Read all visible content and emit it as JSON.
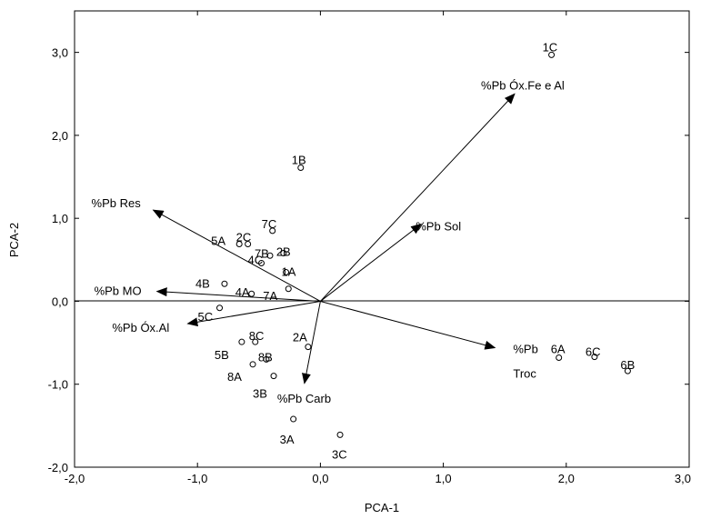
{
  "chart_data": {
    "type": "scatter",
    "xlabel": "PCA-1",
    "ylabel": "PCA-2",
    "xlim": [
      -2.0,
      3.0
    ],
    "ylim": [
      -2.0,
      3.5
    ],
    "xticks": [
      "-2,0",
      "-1,0",
      "0,0",
      "1,0",
      "2,0",
      "3,0"
    ],
    "yticks": [
      "-2,0",
      "-1,0",
      "0,0",
      "1,0",
      "2,0",
      "3,0"
    ],
    "xtick_values": [
      -2,
      -1,
      0,
      1,
      2,
      3
    ],
    "ytick_values": [
      -2,
      -1,
      0,
      1,
      2,
      3
    ],
    "zero_line": "horizontal at y = 0",
    "points": [
      {
        "label": "1C",
        "x": 1.88,
        "y": 2.97
      },
      {
        "label": "1B",
        "x": -0.16,
        "y": 1.61
      },
      {
        "label": "5A",
        "x": -0.66,
        "y": 0.69
      },
      {
        "label": "2C",
        "x": -0.59,
        "y": 0.69
      },
      {
        "label": "7C",
        "x": -0.39,
        "y": 0.85
      },
      {
        "label": "7B",
        "x": -0.41,
        "y": 0.55
      },
      {
        "label": "2B",
        "x": -0.3,
        "y": 0.58
      },
      {
        "label": "4C",
        "x": -0.48,
        "y": 0.46
      },
      {
        "label": "1A",
        "x": -0.28,
        "y": 0.35
      },
      {
        "label": "4B",
        "x": -0.78,
        "y": 0.21
      },
      {
        "label": "4A",
        "x": -0.56,
        "y": 0.09
      },
      {
        "label": "7A",
        "x": -0.26,
        "y": 0.15
      },
      {
        "label": "5C",
        "x": -0.82,
        "y": -0.08
      },
      {
        "label": "5B",
        "x": -0.64,
        "y": -0.49
      },
      {
        "label": "8C",
        "x": -0.53,
        "y": -0.49
      },
      {
        "label": "2A",
        "x": -0.1,
        "y": -0.55
      },
      {
        "label": "8A",
        "x": -0.55,
        "y": -0.76
      },
      {
        "label": "8B",
        "x": -0.44,
        "y": -0.7
      },
      {
        "label": "3B",
        "x": -0.38,
        "y": -0.9
      },
      {
        "label": "3A",
        "x": -0.22,
        "y": -1.42
      },
      {
        "label": "3C",
        "x": 0.16,
        "y": -1.61
      },
      {
        "label": "6A",
        "x": 1.94,
        "y": -0.68
      },
      {
        "label": "6C",
        "x": 2.23,
        "y": -0.67
      },
      {
        "label": "6B",
        "x": 2.5,
        "y": -0.84
      }
    ],
    "vectors": [
      {
        "label": "%Pb Óx.Fe e Al",
        "x": 1.58,
        "y": 2.5
      },
      {
        "label": "%Pb Sol",
        "x": 0.82,
        "y": 0.93
      },
      {
        "label": "%Pb Res",
        "x": -1.36,
        "y": 1.1
      },
      {
        "label": "%Pb MO",
        "x": -1.33,
        "y": 0.12
      },
      {
        "label": "%Pb Óx.Al",
        "x": -1.08,
        "y": -0.27
      },
      {
        "label": "%Pb Carb",
        "x": -0.13,
        "y": -0.99
      },
      {
        "label": "%Pb Troc",
        "x": 1.42,
        "y": -0.56
      }
    ]
  }
}
